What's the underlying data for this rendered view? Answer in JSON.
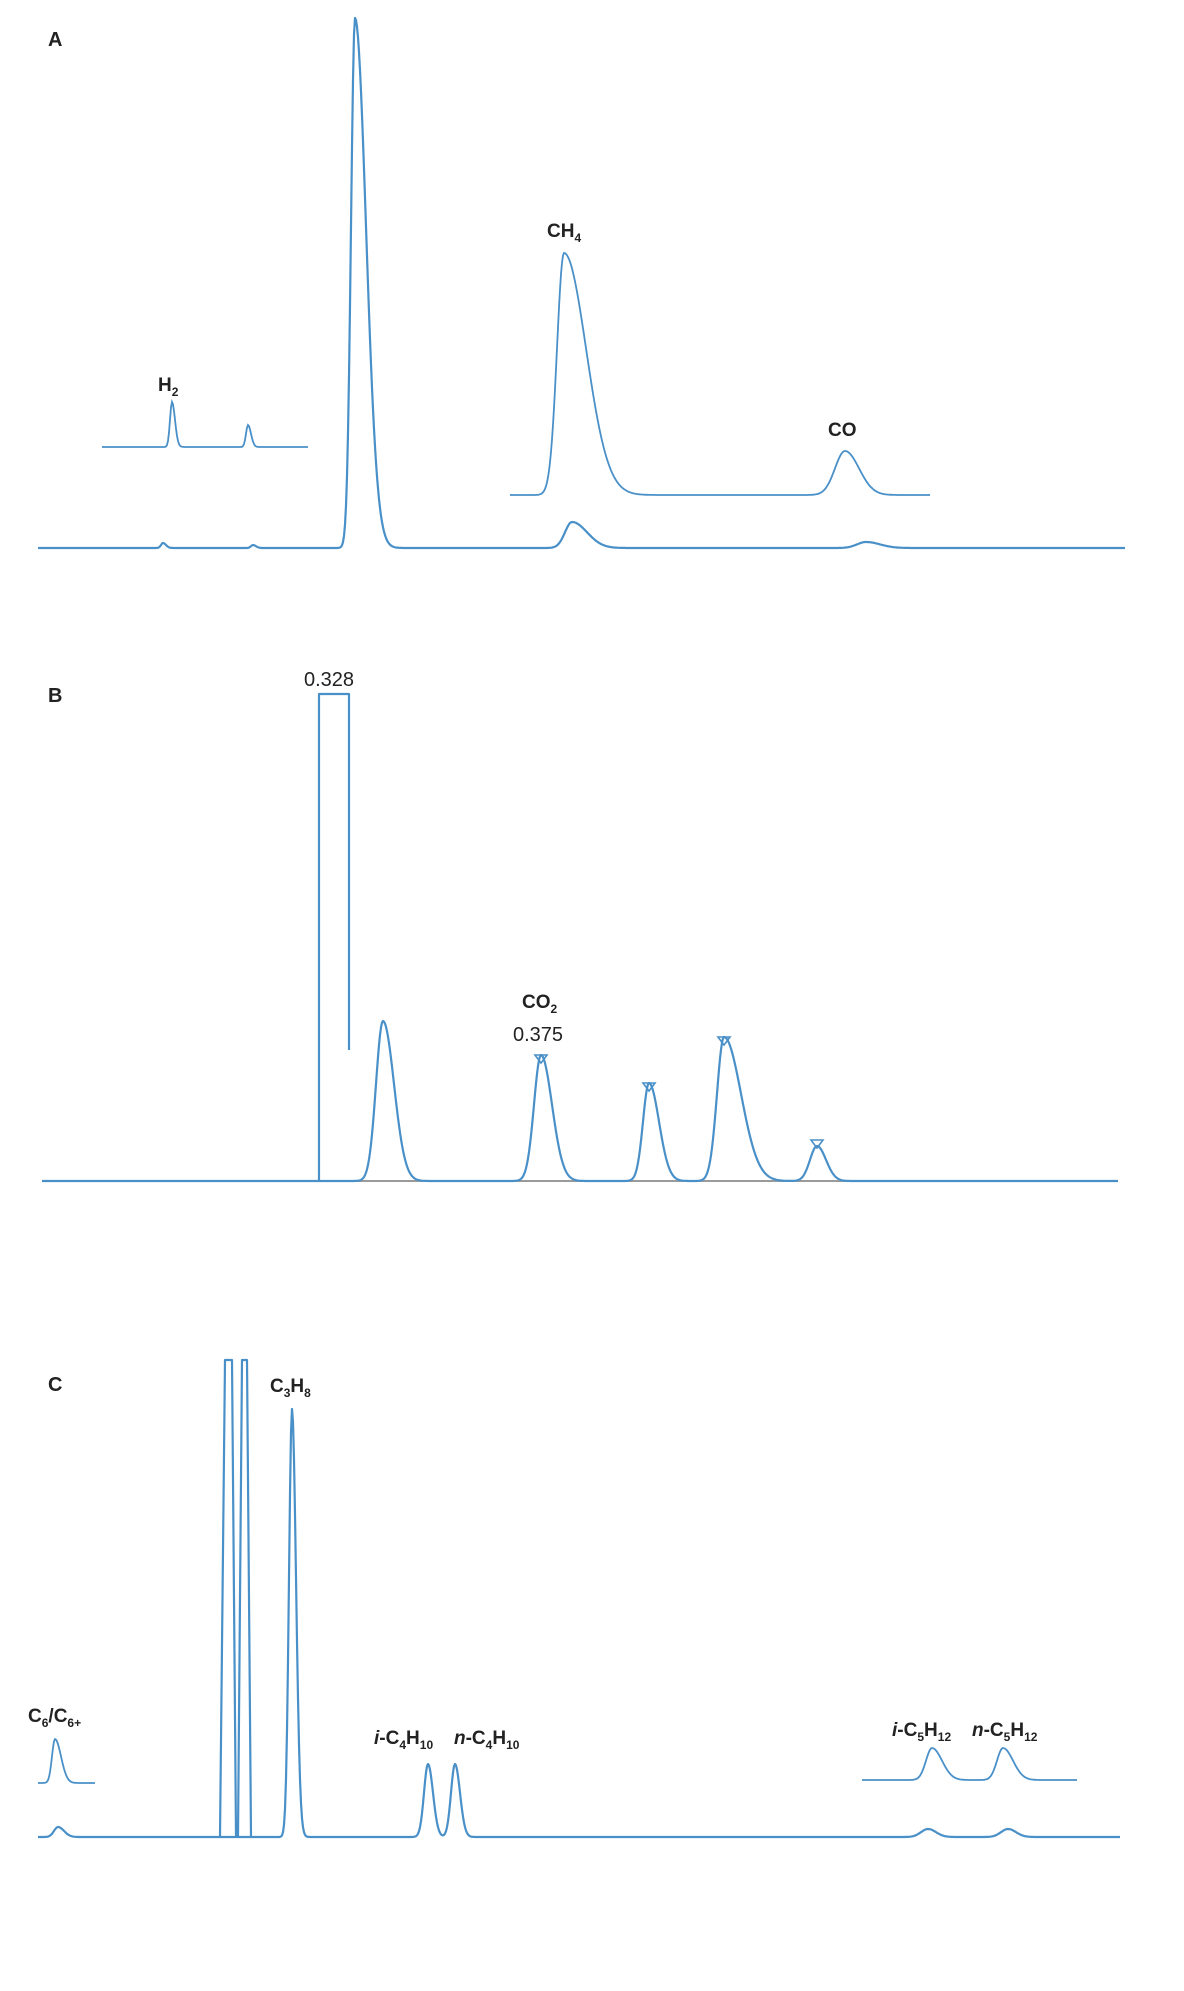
{
  "chart_data": [
    {
      "panel": "A",
      "type": "line",
      "peak_labels": [
        "H2",
        "CH4",
        "CO"
      ],
      "label_parts": {
        "h2": {
          "base": "H",
          "sub": "2"
        },
        "ch4": {
          "base": "CH",
          "sub": "4"
        },
        "co": {
          "base": "CO",
          "sub": ""
        }
      },
      "insets": 2
    },
    {
      "panel": "B",
      "type": "line",
      "peak_labels": [
        "CO2"
      ],
      "label_parts": {
        "co2": {
          "base": "CO",
          "sub": "2"
        }
      },
      "values": [
        "0.328",
        "0.375"
      ]
    },
    {
      "panel": "C",
      "type": "line",
      "peak_labels": [
        "C6/C6+",
        "C3H8",
        "i-C4H10",
        "n-C4H10",
        "i-C5H12",
        "n-C5H12"
      ],
      "insets": 2
    }
  ],
  "panels": {
    "a": {
      "letter": "A"
    },
    "b": {
      "letter": "B",
      "value_1": "0.328",
      "value_2": "0.375"
    },
    "c": {
      "letter": "C"
    }
  },
  "colors": {
    "trace": "#4a90c8",
    "text": "#222222",
    "baseline": "#9a9a9a"
  }
}
